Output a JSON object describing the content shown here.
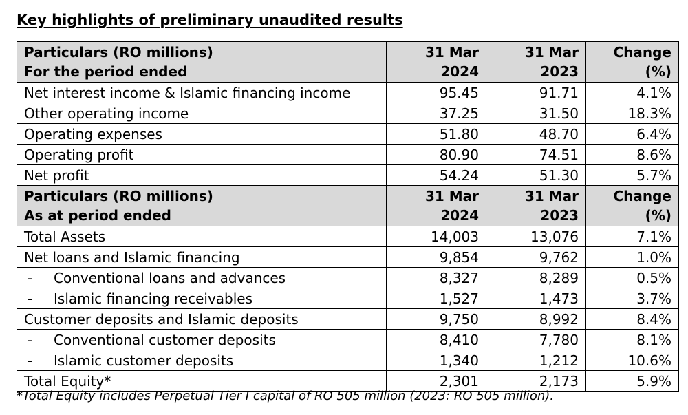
{
  "title": "Key highlights of preliminary unaudited results",
  "sections": [
    {
      "header": {
        "label_line1": "Particulars (RO millions)",
        "label_line2": "For the period ended",
        "col1_line1": "31 Mar",
        "col1_line2": "2024",
        "col2_line1": "31 Mar",
        "col2_line2": "2023",
        "col3_line1": "Change",
        "col3_line2": "(%)"
      },
      "rows": [
        {
          "label": "Net interest income & Islamic financing income",
          "v2024": "95.45",
          "v2023": "91.71",
          "change": "4.1%"
        },
        {
          "label": "Other operating income",
          "v2024": "37.25",
          "v2023": "31.50",
          "change": "18.3%"
        },
        {
          "label": "Operating expenses",
          "v2024": "51.80",
          "v2023": "48.70",
          "change": "6.4%"
        },
        {
          "label": "Operating profit",
          "v2024": "80.90",
          "v2023": "74.51",
          "change": "8.6%"
        },
        {
          "label": "Net profit",
          "v2024": "54.24",
          "v2023": "51.30",
          "change": "5.7%"
        }
      ]
    },
    {
      "header": {
        "label_line1": "Particulars (RO millions)",
        "label_line2": "As at period ended",
        "col1_line1": "31 Mar",
        "col1_line2": "2024",
        "col2_line1": "31 Mar",
        "col2_line2": "2023",
        "col3_line1": "Change",
        "col3_line2": "(%)"
      },
      "rows": [
        {
          "label": "Total Assets",
          "v2024": "14,003",
          "v2023": "13,076",
          "change": "7.1%"
        },
        {
          "label": "Net loans and Islamic financing",
          "v2024": "9,854",
          "v2023": "9,762",
          "change": "1.0%"
        },
        {
          "dash": "-",
          "label": "Conventional loans and advances",
          "v2024": "8,327",
          "v2023": "8,289",
          "change": "0.5%"
        },
        {
          "dash": "-",
          "label": "Islamic financing receivables",
          "v2024": "1,527",
          "v2023": "1,473",
          "change": "3.7%"
        },
        {
          "label": "Customer deposits and Islamic deposits",
          "v2024": "9,750",
          "v2023": "8,992",
          "change": "8.4%"
        },
        {
          "dash": "-",
          "label": "Conventional customer deposits",
          "v2024": "8,410",
          "v2023": "7,780",
          "change": "8.1%"
        },
        {
          "dash": "-",
          "label": "Islamic customer deposits",
          "v2024": "1,340",
          "v2023": "1,212",
          "change": "10.6%"
        },
        {
          "label": "Total Equity*",
          "v2024": "2,301",
          "v2023": "2,173",
          "change": "5.9%"
        }
      ]
    }
  ],
  "footnote": "*Total Equity includes Perpetual Tier I capital of RO 505 million (2023: RO 505 million)."
}
